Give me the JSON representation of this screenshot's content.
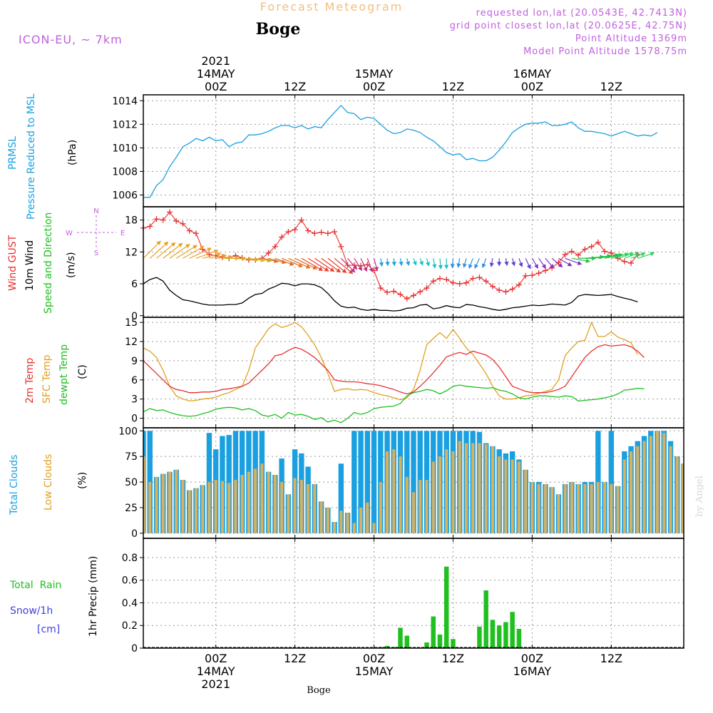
{
  "header": {
    "product_title": "Forecast Meteogram",
    "location": "Boge",
    "model": "ICON-EU, ~ 7km",
    "requested": "requested lon,lat (20.0543E, 42.7413N)",
    "grid_point": "grid point closest lon,lat (20.0625E, 42.75N)",
    "point_alt": "Point Altitude 1369m",
    "model_alt": "Model Point Altitude 1578.75m",
    "footer_location": "Boge",
    "credit": "by Angel"
  },
  "colors": {
    "pressure": "#1aa0e0",
    "gust": "#e83030",
    "wind": "#000000",
    "temp2m": "#e83030",
    "sfc": "#e0a020",
    "dewpt": "#20c020",
    "total_cloud": "#1aa0e0",
    "low_cloud": "#d8b060",
    "rain": "#20c020",
    "snow": "#4040e0",
    "label_purple": "#c060e0",
    "title_orange": "#f0c080"
  },
  "time_axis": {
    "top": [
      {
        "h": 0,
        "lines": [
          "2021",
          "14MAY",
          "00Z"
        ]
      },
      {
        "h": 12,
        "lines": [
          "12Z"
        ]
      },
      {
        "h": 24,
        "lines": [
          "15MAY",
          "00Z"
        ]
      },
      {
        "h": 36,
        "lines": [
          "12Z"
        ]
      },
      {
        "h": 48,
        "lines": [
          "16MAY",
          "00Z"
        ]
      },
      {
        "h": 60,
        "lines": [
          "12Z"
        ]
      }
    ],
    "bottom": [
      {
        "h": 0,
        "lines": [
          "00Z",
          "14MAY",
          "2021"
        ]
      },
      {
        "h": 12,
        "lines": [
          "12Z"
        ]
      },
      {
        "h": 24,
        "lines": [
          "00Z",
          "15MAY"
        ]
      },
      {
        "h": 36,
        "lines": [
          "12Z"
        ]
      },
      {
        "h": 48,
        "lines": [
          "00Z",
          "16MAY"
        ]
      },
      {
        "h": 60,
        "lines": [
          "12Z"
        ]
      }
    ]
  },
  "panel_labels": {
    "pressure": [
      "PRMSL",
      "Pressure Reduced to MSL"
    ],
    "pressure_unit": "(hPa)",
    "wind": [
      "Wind GUST",
      "10m Wind",
      "Speed and Direction"
    ],
    "wind_unit": "(m/s)",
    "compass": {
      "n": "N",
      "s": "S",
      "w": "W",
      "e": "E"
    },
    "temp": [
      "2m Temp",
      "SFC Temp",
      "dewpt Temp"
    ],
    "temp_unit": "(C)",
    "clouds": [
      "Total Clouds",
      "Low Clouds"
    ],
    "clouds_unit": "(%)",
    "precip_total": "Total  Rain",
    "precip_snow": "Snow/1h",
    "precip_snow_unit": "[cm]",
    "precip_axis": "1hr Precip (mm)"
  },
  "chart_data": [
    {
      "type": "line",
      "name": "pressure",
      "x_start_hour": -11,
      "x_step_hours": 1,
      "ylim": [
        1005,
        1014.5
      ],
      "yticks": [
        1006,
        1008,
        1010,
        1012,
        1014
      ],
      "grid": true,
      "series": [
        {
          "name": "PRMSL",
          "values": [
            1005.8,
            1005.8,
            1006.8,
            1007.3,
            1008.4,
            1009.2,
            1010.1,
            1010.4,
            1010.8,
            1010.6,
            1010.9,
            1010.6,
            1010.7,
            1010.1,
            1010.4,
            1010.5,
            1011.1,
            1011.1,
            1011.2,
            1011.4,
            1011.7,
            1011.9,
            1011.9,
            1011.7,
            1011.9,
            1011.6,
            1011.8,
            1011.7,
            1012.4,
            1013.0,
            1013.6,
            1013.0,
            1012.9,
            1012.4,
            1012.6,
            1012.5,
            1012.0,
            1011.5,
            1011.2,
            1011.3,
            1011.6,
            1011.5,
            1011.3,
            1010.9,
            1010.6,
            1010.1,
            1009.6,
            1009.4,
            1009.5,
            1009.0,
            1009.1,
            1008.9,
            1008.9,
            1009.2,
            1009.8,
            1010.5,
            1011.3,
            1011.7,
            1012.0,
            1012.1,
            1012.1,
            1012.2,
            1011.9,
            1011.9,
            1012.0,
            1012.2,
            1011.7,
            1011.4,
            1011.4,
            1011.3,
            1011.2,
            1011.0,
            1011.2,
            1011.4,
            1011.2,
            1011.0,
            1011.1,
            1011.0,
            1011.3
          ]
        }
      ]
    },
    {
      "type": "line",
      "name": "wind",
      "x_start_hour": -11,
      "x_step_hours": 1,
      "ylim": [
        -0.3,
        20.5
      ],
      "yticks": [
        0,
        6,
        12,
        18
      ],
      "grid": true,
      "series": [
        {
          "name": "Wind GUST",
          "values": [
            16.5,
            16.8,
            18.2,
            18.0,
            19.5,
            17.8,
            17.3,
            16.0,
            15.5,
            12.5,
            11.5,
            11.3,
            11.0,
            10.8,
            11.3,
            10.9,
            10.5,
            10.5,
            10.8,
            11.8,
            13.0,
            14.8,
            15.8,
            16.2,
            18.0,
            16.0,
            15.5,
            15.7,
            15.5,
            15.8,
            13.0,
            9.5,
            9.5,
            9.4,
            9.6,
            8.5,
            5.2,
            4.4,
            4.6,
            4.0,
            3.2,
            3.8,
            4.5,
            5.2,
            6.5,
            7.0,
            6.8,
            6.2,
            6.0,
            6.2,
            7.0,
            7.2,
            6.5,
            5.5,
            4.8,
            4.5,
            5.0,
            5.8,
            7.5,
            7.6,
            8.0,
            8.5,
            9.0,
            10.0,
            11.5,
            12.1,
            11.4,
            12.5,
            13.0,
            13.8,
            12.1,
            11.8,
            10.8,
            10.2,
            9.9,
            11.5
          ]
        },
        {
          "name": "10m Wind",
          "values": [
            6.0,
            6.8,
            7.2,
            6.5,
            4.8,
            3.8,
            3.0,
            2.8,
            2.5,
            2.2,
            2.0,
            2.0,
            2.0,
            2.1,
            2.1,
            2.4,
            3.3,
            4.0,
            4.2,
            5.0,
            5.5,
            6.1,
            6.0,
            5.6,
            6.0,
            6.0,
            5.8,
            5.3,
            4.2,
            2.8,
            1.8,
            1.5,
            1.6,
            1.2,
            1.0,
            1.2,
            1.0,
            1.0,
            0.9,
            1.0,
            1.4,
            1.5,
            2.0,
            2.1,
            1.3,
            1.5,
            1.9,
            1.6,
            1.5,
            2.1,
            2.0,
            1.7,
            1.5,
            1.2,
            1.0,
            1.2,
            1.5,
            1.6,
            1.8,
            2.0,
            1.9,
            2.0,
            2.2,
            2.1,
            2.0,
            2.5,
            3.7,
            4.0,
            3.9,
            3.8,
            3.9,
            4.0,
            3.6,
            3.3,
            3.0,
            2.6
          ]
        }
      ],
      "barbs": {
        "y_value": 10.8,
        "dirs_deg": [
          225,
          228,
          230,
          232,
          235,
          238,
          240,
          245,
          250,
          255,
          260,
          265,
          270,
          272,
          274,
          276,
          278,
          280,
          282,
          285,
          290,
          292,
          294,
          296,
          300,
          302,
          304,
          306,
          308,
          310,
          315,
          320,
          328,
          335,
          340,
          345,
          350,
          355,
          355,
          350,
          345,
          340,
          340,
          345,
          350,
          355,
          0,
          5,
          10,
          15,
          20,
          25,
          20,
          10,
          0,
          350,
          345,
          340,
          335,
          330,
          325,
          320,
          310,
          300,
          290,
          280,
          270,
          265,
          262,
          260,
          258,
          255,
          252,
          250,
          250,
          252
        ]
      }
    },
    {
      "type": "line",
      "name": "temperature",
      "x_start_hour": -11,
      "x_step_hours": 1,
      "ylim": [
        -1.5,
        15.8
      ],
      "yticks": [
        0,
        3,
        6,
        9,
        12,
        15
      ],
      "grid": true,
      "series": [
        {
          "name": "2m Temp",
          "values": [
            9.0,
            8.0,
            7.0,
            6.0,
            5.0,
            4.5,
            4.3,
            4.0,
            4.0,
            4.1,
            4.1,
            4.2,
            4.5,
            4.6,
            4.8,
            5.0,
            5.5,
            6.5,
            7.5,
            8.5,
            9.8,
            10.0,
            10.6,
            11.1,
            10.8,
            10.2,
            9.5,
            8.5,
            7.5,
            6.0,
            5.8,
            5.7,
            5.7,
            5.6,
            5.4,
            5.3,
            5.1,
            4.8,
            4.5,
            4.1,
            3.8,
            4.1,
            5.0,
            6.0,
            7.1,
            8.3,
            9.6,
            10.0,
            10.3,
            10.0,
            10.5,
            10.2,
            9.9,
            9.2,
            8.0,
            6.5,
            5.0,
            4.6,
            4.2,
            4.0,
            4.0,
            4.0,
            4.2,
            4.5,
            5.0,
            6.5,
            8.0,
            9.5,
            10.5,
            11.2,
            11.5,
            11.3,
            11.4,
            11.5,
            11.2,
            10.5,
            9.5
          ]
        },
        {
          "name": "SFC Temp",
          "values": [
            11.0,
            10.5,
            9.5,
            7.5,
            5.0,
            3.5,
            3.0,
            2.7,
            2.8,
            3.0,
            3.1,
            3.3,
            3.7,
            4.0,
            4.5,
            5.0,
            7.5,
            11.0,
            12.5,
            14.0,
            14.8,
            14.2,
            14.5,
            15.0,
            14.3,
            13.0,
            11.5,
            9.5,
            7.0,
            4.2,
            4.5,
            4.6,
            4.4,
            4.5,
            4.4,
            4.0,
            3.7,
            3.5,
            3.2,
            2.9,
            3.2,
            4.5,
            7.5,
            11.5,
            12.5,
            13.4,
            12.5,
            13.9,
            12.5,
            11.0,
            10.0,
            8.5,
            7.0,
            5.0,
            3.5,
            3.0,
            3.0,
            3.2,
            3.5,
            3.6,
            3.9,
            4.2,
            4.5,
            6.0,
            9.8,
            11.0,
            12.0,
            12.2,
            15.0,
            12.8,
            12.8,
            13.5,
            12.7,
            12.3,
            11.8,
            10.0
          ]
        },
        {
          "name": "dewpt Temp",
          "values": [
            1.0,
            1.5,
            1.2,
            1.3,
            0.9,
            0.6,
            0.4,
            0.3,
            0.4,
            0.7,
            1.0,
            1.4,
            1.6,
            1.7,
            1.6,
            1.3,
            1.5,
            1.2,
            0.5,
            0.3,
            0.6,
            0.0,
            0.9,
            0.5,
            0.6,
            0.3,
            -0.2,
            0.1,
            -0.6,
            -0.3,
            -0.7,
            0.0,
            0.9,
            0.6,
            0.9,
            1.5,
            1.7,
            1.8,
            1.9,
            2.3,
            3.5,
            4.0,
            4.2,
            4.5,
            4.3,
            3.8,
            4.3,
            5.0,
            5.2,
            5.0,
            4.9,
            4.8,
            4.7,
            4.8,
            4.4,
            4.2,
            3.8,
            3.2,
            3.0,
            3.3,
            3.5,
            3.5,
            3.4,
            3.3,
            3.5,
            3.4,
            2.7,
            2.8,
            2.9,
            3.0,
            3.2,
            3.4,
            3.8,
            4.4,
            4.5,
            4.7,
            4.6
          ]
        }
      ]
    },
    {
      "type": "bar",
      "name": "clouds",
      "x_start_hour": -11,
      "x_step_hours": 1,
      "ylim": [
        -5,
        103
      ],
      "yticks": [
        0,
        25,
        50,
        75,
        100
      ],
      "grid": true,
      "series": [
        {
          "name": "Total Clouds",
          "values": [
            100,
            100,
            55,
            58,
            60,
            62,
            52,
            42,
            44,
            47,
            98,
            82,
            95,
            96,
            100,
            100,
            100,
            100,
            100,
            60,
            57,
            73,
            38,
            82,
            78,
            65,
            48,
            31,
            25,
            11,
            68,
            20,
            100,
            100,
            100,
            100,
            100,
            100,
            100,
            100,
            100,
            100,
            100,
            100,
            100,
            100,
            100,
            100,
            100,
            100,
            100,
            99,
            88,
            85,
            82,
            78,
            80,
            72,
            62,
            50,
            50,
            48,
            45,
            38,
            48,
            50,
            48,
            50,
            50,
            100,
            50,
            100,
            46,
            80,
            85,
            90,
            95,
            100,
            100,
            100,
            90,
            75,
            68
          ]
        },
        {
          "name": "Low Clouds",
          "values": [
            75,
            50,
            55,
            58,
            60,
            62,
            52,
            42,
            44,
            47,
            50,
            52,
            51,
            49,
            52,
            57,
            60,
            63,
            68,
            60,
            57,
            50,
            38,
            54,
            52,
            48,
            48,
            31,
            25,
            11,
            22,
            20,
            10,
            25,
            30,
            10,
            50,
            80,
            82,
            75,
            55,
            40,
            52,
            52,
            70,
            75,
            82,
            80,
            90,
            88,
            88,
            88,
            87,
            85,
            75,
            72,
            72,
            70,
            62,
            50,
            48,
            48,
            45,
            38,
            48,
            50,
            48,
            48,
            48,
            50,
            50,
            48,
            46,
            72,
            80,
            85,
            90,
            95,
            100,
            98,
            85,
            75,
            68
          ]
        }
      ]
    },
    {
      "type": "bar",
      "name": "precipitation",
      "x_start_hour": -11,
      "x_step_hours": 1,
      "ylim": [
        0,
        0.97
      ],
      "yticks": [
        0,
        0.2,
        0.4,
        0.6,
        0.8
      ],
      "grid": true,
      "series": [
        {
          "name": "Total Rain",
          "values": [
            0,
            0,
            0,
            0,
            0,
            0,
            0,
            0,
            0,
            0,
            0,
            0,
            0,
            0,
            0,
            0,
            0,
            0,
            0,
            0,
            0,
            0,
            0,
            0,
            0,
            0,
            0,
            0,
            0,
            0,
            0,
            0,
            0,
            0,
            0,
            0,
            0.01,
            0.02,
            0.01,
            0.18,
            0.11,
            0,
            0,
            0.05,
            0.28,
            0.12,
            0.72,
            0.08,
            0,
            0,
            0,
            0.19,
            0.51,
            0.25,
            0.2,
            0.23,
            0.32,
            0.17,
            0,
            0,
            0,
            0,
            0,
            0,
            0,
            0,
            0,
            0,
            0,
            0,
            0,
            0,
            0,
            0,
            0,
            0,
            0,
            0,
            0,
            0,
            0,
            0,
            0
          ]
        }
      ]
    }
  ]
}
